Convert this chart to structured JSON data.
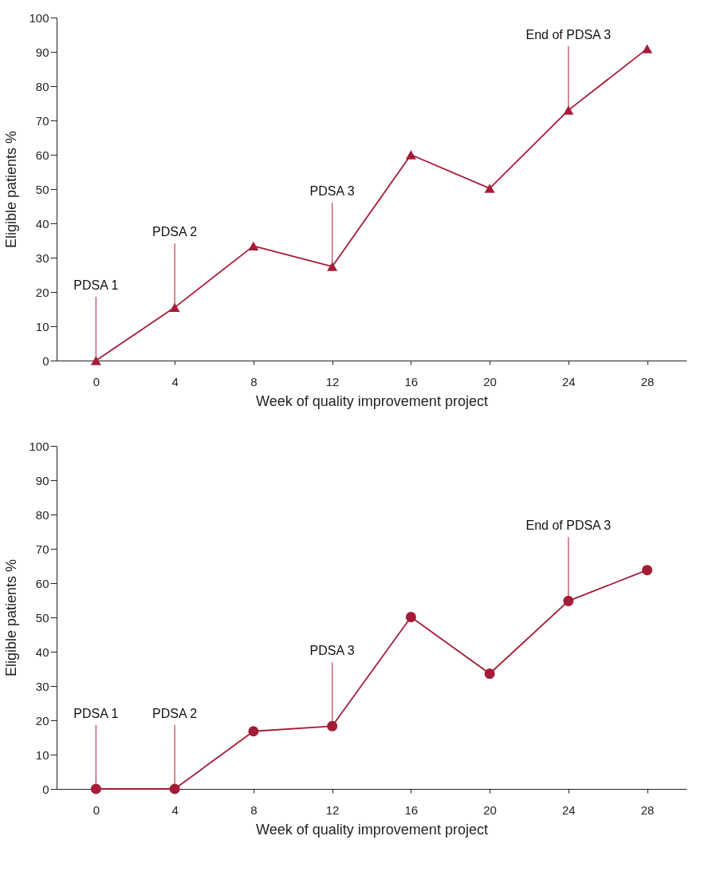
{
  "chart_data": [
    {
      "type": "line",
      "xlabel": "Week of quality improvement project",
      "ylabel": "Eligible patients %",
      "x": [
        0,
        4,
        8,
        12,
        16,
        20,
        24,
        28
      ],
      "series": [
        {
          "color": "#a51c36",
          "values": [
            0,
            15.5,
            33.4,
            27.4,
            60,
            50.2,
            73,
            90.9
          ]
        }
      ],
      "xlim": [
        -2,
        30
      ],
      "xticks": [
        0,
        4,
        8,
        12,
        16,
        20,
        24,
        28
      ],
      "ylim": [
        0,
        100
      ],
      "yticks": [
        0,
        10,
        20,
        30,
        40,
        50,
        60,
        70,
        80,
        90,
        100
      ],
      "marker": "triangle",
      "line_style": "solid",
      "grid": false,
      "annotations": [
        {
          "text": "PDSA 1",
          "x": 0,
          "y": 0
        },
        {
          "text": "PDSA 2",
          "x": 4,
          "y": 15.5
        },
        {
          "text": "PDSA 3",
          "x": 12,
          "y": 27.4
        },
        {
          "text": "End of PDSA 3",
          "x": 24,
          "y": 73
        }
      ]
    },
    {
      "type": "line",
      "xlabel": "Week of quality improvement project",
      "ylabel": "Eligible patients %",
      "x": [
        0,
        4,
        8,
        12,
        16,
        20,
        24,
        28
      ],
      "series": [
        {
          "color": "#a51c36",
          "values": [
            0,
            0,
            16.8,
            18.3,
            50.1,
            33.6,
            54.8,
            63.8
          ]
        }
      ],
      "xlim": [
        -2,
        30
      ],
      "xticks": [
        0,
        4,
        8,
        12,
        16,
        20,
        24,
        28
      ],
      "ylim": [
        0,
        100
      ],
      "yticks": [
        0,
        10,
        20,
        30,
        40,
        50,
        60,
        70,
        80,
        90,
        100
      ],
      "marker": "circle",
      "line_style": "solid",
      "grid": false,
      "annotations": [
        {
          "text": "PDSA 1",
          "x": 0,
          "y": 0
        },
        {
          "text": "PDSA 2",
          "x": 4,
          "y": 0
        },
        {
          "text": "PDSA 3",
          "x": 12,
          "y": 18.3
        },
        {
          "text": "End of PDSA 3",
          "x": 24,
          "y": 54.8
        }
      ]
    }
  ]
}
